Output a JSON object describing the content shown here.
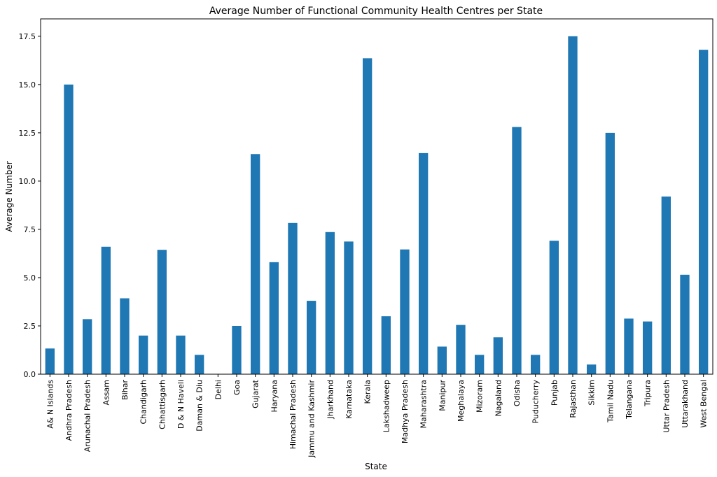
{
  "chart_data": {
    "type": "bar",
    "title": "Average Number of Functional Community Health Centres per State",
    "xlabel": "State",
    "ylabel": "Average Number",
    "ylim": [
      0,
      18.4
    ],
    "yticks": [
      "0.0",
      "2.5",
      "5.0",
      "7.5",
      "10.0",
      "12.5",
      "15.0",
      "17.5"
    ],
    "ytick_values": [
      0,
      2.5,
      5,
      7.5,
      10,
      12.5,
      15,
      17.5
    ],
    "bar_color": "#1f77b4",
    "grid": false,
    "legend": "none",
    "categories": [
      "A& N Islands",
      "Andhra Pradesh",
      "Arunachal Pradesh",
      "Assam",
      "Bihar",
      "Chandigarh",
      "Chhattisgarh",
      "D & N Haveli",
      "Daman & Diu",
      "Delhi",
      "Goa",
      "Gujarat",
      "Haryana",
      "Himachal Pradesh",
      "Jammu and Kashmir",
      "Jharkhand",
      "Karnataka",
      "Kerala",
      "Lakshadweep",
      "Madhya Pradesh",
      "Maharashtra",
      "Manipur",
      "Meghalaya",
      "Mizoram",
      "Nagaland",
      "Odisha",
      "Puducherry",
      "Punjab",
      "Rajasthan",
      "Sikkim",
      "Tamil Nadu",
      "Telangana",
      "Tripura",
      "Uttar Pradesh",
      "Uttarakhand",
      "West Bengal"
    ],
    "values": [
      1.33,
      15.0,
      2.85,
      6.6,
      3.93,
      2.0,
      6.44,
      2.0,
      1.0,
      0.0,
      2.5,
      11.4,
      5.8,
      7.83,
      3.8,
      7.36,
      6.87,
      16.36,
      3.0,
      6.46,
      11.45,
      1.43,
      2.55,
      1.0,
      1.91,
      12.8,
      1.0,
      6.91,
      17.5,
      0.5,
      12.5,
      2.88,
      2.73,
      9.2,
      5.15,
      16.8
    ]
  }
}
